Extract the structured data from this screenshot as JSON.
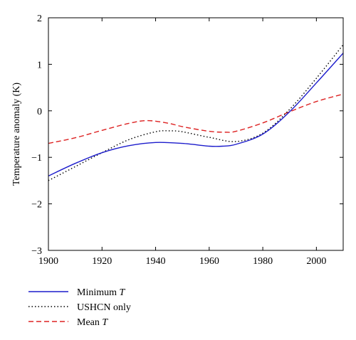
{
  "chart_data": {
    "type": "line",
    "title": "",
    "xlabel": "",
    "ylabel": "Temperature anomaly (K)",
    "xlim": [
      1900,
      2010
    ],
    "ylim": [
      -3,
      2
    ],
    "xticks": [
      1900,
      1920,
      1940,
      1960,
      1980,
      2000
    ],
    "yticks": [
      -3,
      -2,
      -1,
      0,
      1,
      2
    ],
    "grid": false,
    "legend_position": "bottom",
    "series": [
      {
        "name": "Minimum",
        "name_suffix": "T",
        "style": "solid",
        "color": "#1c1ccc",
        "x": [
          1900,
          1910,
          1920,
          1930,
          1940,
          1950,
          1960,
          1965,
          1970,
          1980,
          1990,
          2000,
          2010
        ],
        "y": [
          -1.4,
          -1.13,
          -0.9,
          -0.75,
          -0.68,
          -0.7,
          -0.76,
          -0.76,
          -0.72,
          -0.5,
          -0.02,
          0.6,
          1.24
        ]
      },
      {
        "name": "USHCN only",
        "name_suffix": "",
        "style": "dotted",
        "color": "#000000",
        "x": [
          1900,
          1910,
          1920,
          1930,
          1940,
          1945,
          1950,
          1960,
          1970,
          1980,
          1990,
          2000,
          2010
        ],
        "y": [
          -1.5,
          -1.2,
          -0.9,
          -0.62,
          -0.45,
          -0.43,
          -0.45,
          -0.57,
          -0.66,
          -0.48,
          0.03,
          0.7,
          1.42
        ]
      },
      {
        "name": "Mean",
        "name_suffix": "T",
        "style": "dashed",
        "color": "#dd2222",
        "x": [
          1900,
          1910,
          1920,
          1930,
          1937,
          1945,
          1950,
          1960,
          1966,
          1970,
          1980,
          1990,
          2000,
          2010
        ],
        "y": [
          -0.7,
          -0.58,
          -0.42,
          -0.27,
          -0.21,
          -0.27,
          -0.34,
          -0.44,
          -0.46,
          -0.44,
          -0.26,
          -0.02,
          0.2,
          0.36
        ]
      }
    ]
  }
}
